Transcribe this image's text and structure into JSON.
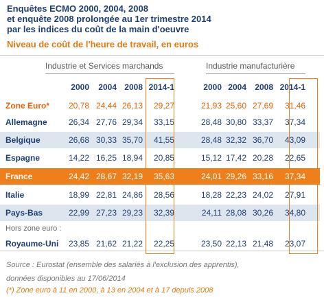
{
  "title_lines": [
    "Enquêtes ECMO 2000, 2004, 2008",
    "et enquête 2008 prolongée au 1er trimestre 2014",
    "par les indices du coût de la main d'oeuvre"
  ],
  "subtitle": "Niveau de coût de l'heure de travail, en euros",
  "groups": [
    "Industrie et Services marchands",
    "Industrie manufacturière"
  ],
  "columns": [
    "2000",
    "2004",
    "2008",
    "2014-1"
  ],
  "hors_zone_label": "Hors zone euro :",
  "source_lines": [
    "Source : Eurostat (ensemble des salariés à l'exclusion des apprentis),",
    "données disponibles au 17/06/2014"
  ],
  "note": "(*) Zone euro à 11 en 2000, à 13 en 2004 et à 17 depuis 2008",
  "colors": {
    "navy": "#1f3f73",
    "orange": "#ef7f1a",
    "shade": "#dde5ef"
  },
  "chart_data": {
    "type": "table",
    "unit": "euros",
    "rows": [
      {
        "label": "Zone Euro*",
        "style": "zone",
        "ism": [
          "20,78",
          "24,44",
          "26,13",
          "29,27"
        ],
        "im": [
          "21,93",
          "25,60",
          "27,69",
          "31,46"
        ]
      },
      {
        "label": "Allemagne",
        "style": "",
        "ism": [
          "26,34",
          "27,76",
          "29,34",
          "33,15"
        ],
        "im": [
          "28,48",
          "30,80",
          "33,37",
          "37,34"
        ]
      },
      {
        "label": "Belgique",
        "style": "shade",
        "ism": [
          "26,68",
          "30,33",
          "35,70",
          "41,55"
        ],
        "im": [
          "28,48",
          "32,32",
          "36,70",
          "43,09"
        ]
      },
      {
        "label": "Espagne",
        "style": "",
        "ism": [
          "14,22",
          "16,25",
          "18,94",
          "20,85"
        ],
        "im": [
          "15,12",
          "17,42",
          "20,28",
          "22,65"
        ]
      },
      {
        "label": "France",
        "style": "hl",
        "ism": [
          "24,42",
          "28,67",
          "32,19",
          "35,63"
        ],
        "im": [
          "24,01",
          "29,26",
          "33,16",
          "37,34"
        ]
      },
      {
        "label": "Italie",
        "style": "",
        "ism": [
          "18,99",
          "22,81",
          "24,86",
          "28,56"
        ],
        "im": [
          "18,28",
          "22,23",
          "24,02",
          "27,91"
        ]
      },
      {
        "label": "Pays-Bas",
        "style": "shade",
        "ism": [
          "22,99",
          "27,23",
          "29,23",
          "32,39"
        ],
        "im": [
          "24,11",
          "28,08",
          "30,26",
          "34,80"
        ]
      },
      {
        "label": "Royaume-Uni",
        "style": "",
        "ism": [
          "23,85",
          "21,62",
          "21,22",
          "22,25"
        ],
        "im": [
          "23,50",
          "22,13",
          "21,48",
          "23,07"
        ]
      }
    ]
  }
}
